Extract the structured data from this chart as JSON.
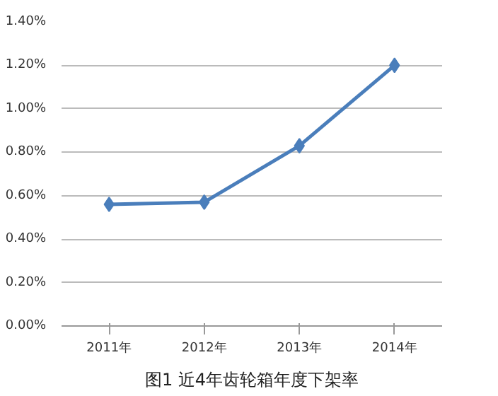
{
  "chart_data": {
    "type": "line",
    "categories": [
      "2011年",
      "2012年",
      "2013年",
      "2014年"
    ],
    "series": [
      {
        "color": "#4a7ebb",
        "values": [
          0.56,
          0.57,
          0.83,
          1.2
        ]
      }
    ],
    "ylim": [
      0,
      1.4
    ],
    "yticks": [
      {
        "value": 0,
        "label": "0.00%"
      },
      {
        "value": 0.2,
        "label": "0.20%"
      },
      {
        "value": 0.4,
        "label": "0.40%"
      },
      {
        "value": 0.6,
        "label": "0.60%"
      },
      {
        "value": 0.8,
        "label": "0.80%"
      },
      {
        "value": 1.0,
        "label": "1.00%"
      },
      {
        "value": 1.2,
        "label": "1.20%"
      },
      {
        "value": 1.4,
        "label": "1.40%"
      }
    ],
    "grid": "y",
    "marker": "diamond",
    "line_style": "solid",
    "annotations": [
      "图1 近4年齿轮箱年度下架率"
    ]
  }
}
